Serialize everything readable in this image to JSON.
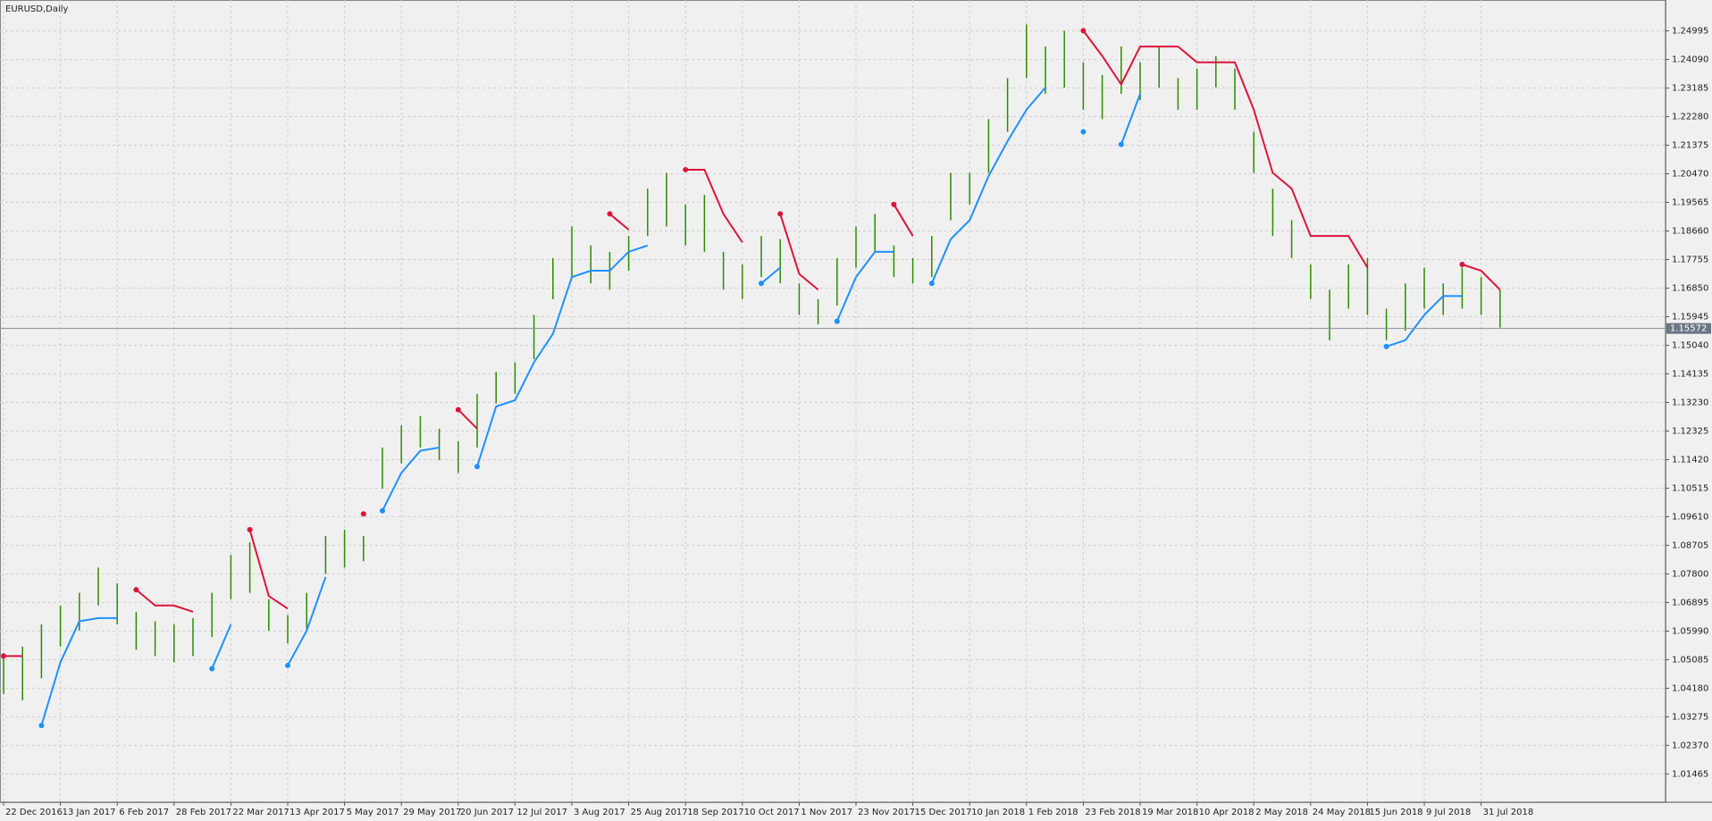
{
  "chart_data": {
    "type": "ohlc",
    "title": "EURUSD,Daily",
    "categories": [
      "22 Dec 2016",
      null,
      null,
      "13 Jan 2017",
      null,
      null,
      "6 Feb 2017",
      null,
      null,
      "28 Feb 2017",
      null,
      null,
      "22 Mar 2017",
      null,
      null,
      "13 Apr 2017",
      null,
      null,
      "5 May 2017",
      null,
      null,
      "29 May 2017",
      null,
      null,
      "20 Jun 2017",
      null,
      null,
      "12 Jul 2017",
      null,
      null,
      "3 Aug 2017",
      null,
      null,
      "25 Aug 2017",
      null,
      null,
      "18 Sep 2017",
      null,
      null,
      "10 Oct 2017",
      null,
      null,
      "1 Nov 2017",
      null,
      null,
      "23 Nov 2017",
      null,
      null,
      "15 Dec 2017",
      null,
      null,
      "10 Jan 2018",
      null,
      null,
      "1 Feb 2018",
      null,
      null,
      "23 Feb 2018",
      null,
      null,
      "19 Mar 2018",
      null,
      null,
      "10 Apr 2018",
      null,
      null,
      "2 May 2018",
      null,
      null,
      "24 May 2018",
      null,
      null,
      "15 Jun 2018",
      null,
      null,
      "9 Jul 2018",
      null,
      null,
      "31 Jul 2018",
      null
    ],
    "high": [
      1.053,
      1.055,
      1.062,
      1.068,
      1.072,
      1.08,
      1.075,
      1.066,
      1.063,
      1.062,
      1.064,
      1.072,
      1.084,
      1.088,
      1.07,
      1.065,
      1.072,
      1.09,
      1.092,
      1.09,
      1.118,
      1.125,
      1.128,
      1.124,
      1.12,
      1.135,
      1.142,
      1.145,
      1.16,
      1.178,
      1.188,
      1.182,
      1.18,
      1.185,
      1.2,
      1.205,
      1.195,
      1.198,
      1.18,
      1.176,
      1.185,
      1.184,
      1.17,
      1.165,
      1.178,
      1.188,
      1.192,
      1.182,
      1.178,
      1.185,
      1.205,
      1.205,
      1.222,
      1.235,
      1.252,
      1.245,
      1.25,
      1.24,
      1.236,
      1.245,
      1.24,
      1.245,
      1.235,
      1.238,
      1.242,
      1.238,
      1.218,
      1.2,
      1.19,
      1.176,
      1.168,
      1.176,
      1.178,
      1.162,
      1.17,
      1.175,
      1.17,
      1.175,
      1.172,
      1.168
    ],
    "low": [
      1.04,
      1.038,
      1.045,
      1.055,
      1.06,
      1.068,
      1.062,
      1.054,
      1.052,
      1.05,
      1.052,
      1.058,
      1.07,
      1.072,
      1.06,
      1.056,
      1.06,
      1.078,
      1.08,
      1.082,
      1.105,
      1.113,
      1.118,
      1.114,
      1.11,
      1.118,
      1.132,
      1.135,
      1.146,
      1.165,
      1.172,
      1.17,
      1.168,
      1.174,
      1.185,
      1.188,
      1.182,
      1.18,
      1.168,
      1.165,
      1.172,
      1.17,
      1.16,
      1.157,
      1.163,
      1.175,
      1.18,
      1.172,
      1.17,
      1.172,
      1.19,
      1.195,
      1.205,
      1.218,
      1.235,
      1.23,
      1.232,
      1.225,
      1.222,
      1.23,
      1.228,
      1.232,
      1.225,
      1.225,
      1.232,
      1.225,
      1.205,
      1.185,
      1.178,
      1.165,
      1.152,
      1.162,
      1.16,
      1.152,
      1.155,
      1.162,
      1.16,
      1.162,
      1.16,
      1.156
    ],
    "color": "#2e8b00",
    "lines": [
      {
        "color": "#dc143c",
        "values": [
          1.052,
          1.052,
          null,
          null,
          null,
          null,
          null,
          1.073,
          1.068,
          1.068,
          1.066,
          null,
          null,
          1.092,
          1.071,
          1.067,
          null,
          null,
          null,
          1.097,
          null,
          null,
          null,
          null,
          1.13,
          1.124,
          null,
          null,
          null,
          null,
          null,
          null,
          1.192,
          1.187,
          null,
          null,
          1.206,
          1.206,
          1.192,
          1.183,
          null,
          1.192,
          1.173,
          1.168,
          null,
          null,
          null,
          1.195,
          1.185,
          null,
          null,
          null,
          null,
          null,
          null,
          null,
          null,
          1.25,
          1.242,
          1.233,
          1.245,
          1.245,
          1.245,
          1.24,
          1.24,
          1.24,
          1.225,
          1.205,
          1.2,
          1.185,
          1.185,
          1.185,
          1.175,
          null,
          null,
          null,
          null,
          1.176,
          1.174,
          1.168
        ]
      },
      {
        "color": "#1e90ff",
        "values": [
          null,
          null,
          1.03,
          1.05,
          1.063,
          1.064,
          1.064,
          null,
          null,
          null,
          null,
          1.048,
          1.062,
          null,
          null,
          1.049,
          1.06,
          1.077,
          null,
          null,
          1.098,
          1.11,
          1.117,
          1.118,
          null,
          1.112,
          1.131,
          1.133,
          1.145,
          1.154,
          1.172,
          1.174,
          1.174,
          1.18,
          1.182,
          null,
          null,
          null,
          null,
          null,
          1.17,
          1.175,
          null,
          null,
          1.158,
          1.172,
          1.18,
          1.18,
          null,
          1.17,
          1.184,
          1.19,
          1.204,
          1.215,
          1.225,
          1.232,
          null,
          1.218,
          null,
          1.214,
          1.23,
          null,
          null,
          null,
          null,
          null,
          null,
          null,
          null,
          null,
          null,
          null,
          null,
          1.15,
          1.152,
          1.16,
          1.166,
          1.166,
          null,
          null
        ]
      }
    ],
    "current_price": 1.15572,
    "ylim": [
      1.0057,
      1.2586
    ],
    "yticks": [
      1.24995,
      {
        "value": 1.2409,
        "label": "1.24090"
      },
      1.23185,
      {
        "value": 1.2228,
        "label": "1.22280"
      },
      1.21375,
      {
        "value": 1.2047,
        "label": "1.20470"
      },
      1.19565,
      {
        "value": 1.1866,
        "label": "1.18660"
      },
      1.17755,
      {
        "value": 1.1685,
        "label": "1.16850"
      },
      1.15945,
      {
        "value": 1.1504,
        "label": "1.15040"
      },
      1.14135,
      {
        "value": 1.1323,
        "label": "1.13230"
      },
      1.12325,
      {
        "value": 1.1142,
        "label": "1.11420"
      },
      1.10515,
      {
        "value": 1.0961,
        "label": "1.09610"
      },
      1.08705,
      {
        "value": 1.078,
        "label": "1.07800"
      },
      1.06895,
      {
        "value": 1.0599,
        "label": "1.05990"
      },
      1.05085,
      {
        "value": 1.0418,
        "label": "1.04180"
      },
      1.03275,
      {
        "value": 1.0237,
        "label": "1.02370"
      },
      1.01465
    ],
    "grid": true
  }
}
